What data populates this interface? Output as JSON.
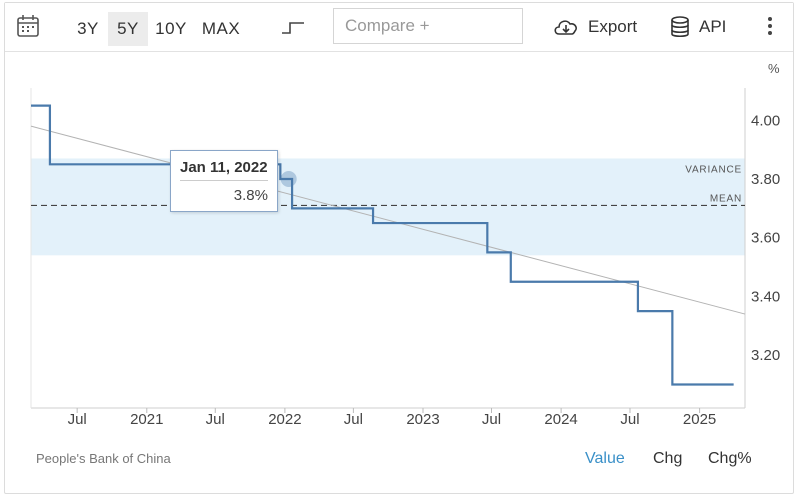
{
  "toolbar": {
    "range_buttons": [
      "3Y",
      "5Y",
      "10Y",
      "MAX"
    ],
    "active_range": "5Y",
    "compare_placeholder": "Compare +",
    "export_label": "Export",
    "api_label": "API"
  },
  "unit_label": "%",
  "tooltip": {
    "date": "Jan 11, 2022",
    "value": "3.8%"
  },
  "source": "People's Bank of China",
  "views": [
    "Value",
    "Chg",
    "Chg%"
  ],
  "active_view": "Value",
  "colors": {
    "line": "#4a7aab",
    "band": "#e3f1fa",
    "trend": "#b3b3b3",
    "accent": "#3a90c8"
  },
  "chart_data": {
    "type": "line",
    "series": [
      {
        "step": true,
        "points": [
          [
            "2020-03-01",
            4.05
          ],
          [
            "2020-04-20",
            3.85
          ],
          [
            "2021-12-20",
            3.8
          ],
          [
            "2022-01-20",
            3.7
          ],
          [
            "2022-08-22",
            3.65
          ],
          [
            "2023-06-20",
            3.55
          ],
          [
            "2023-08-21",
            3.45
          ],
          [
            "2024-07-22",
            3.35
          ],
          [
            "2024-10-21",
            3.1
          ],
          [
            "2025-04-01",
            3.1
          ]
        ]
      }
    ],
    "trend_line": [
      [
        "2020-03-01",
        3.98
      ],
      [
        "2025-05-01",
        3.34
      ]
    ],
    "mean": 3.71,
    "variance_band": [
      3.54,
      3.87
    ],
    "band_labels": [
      "VARIANCE",
      "MEAN"
    ],
    "x_tick_labels": [
      "Jul",
      "2021",
      "Jul",
      "2022",
      "Jul",
      "2023",
      "Jul",
      "2024",
      "Jul",
      "2025"
    ],
    "x_tick_dates": [
      "2020-07-01",
      "2021-01-01",
      "2021-07-01",
      "2022-01-01",
      "2022-07-01",
      "2023-01-01",
      "2023-07-01",
      "2024-01-01",
      "2024-07-01",
      "2025-01-01"
    ],
    "y_ticks": [
      "3.20",
      "3.40",
      "3.60",
      "3.80",
      "4.00"
    ],
    "x_range": [
      "2020-03-01",
      "2025-05-01"
    ],
    "y_range": [
      3.02,
      4.11
    ],
    "highlight": [
      "2022-01-11",
      3.8
    ]
  }
}
